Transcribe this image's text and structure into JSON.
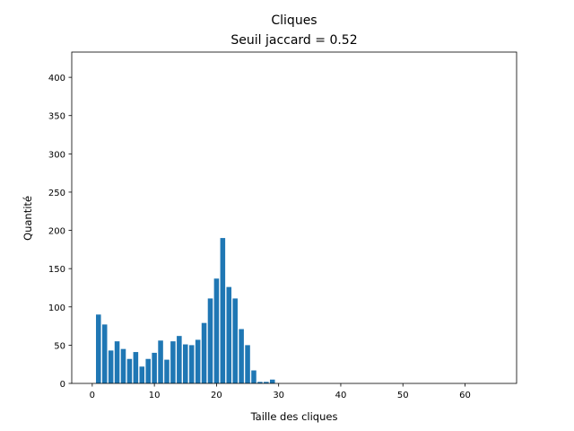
{
  "chart_data": {
    "type": "bar",
    "title": "Cliques",
    "subtitle": "Seuil jaccard = 0.52",
    "xlabel": "Taille des cliques",
    "ylabel": "Quantité",
    "x": [
      1,
      2,
      3,
      4,
      5,
      6,
      7,
      8,
      9,
      10,
      11,
      12,
      13,
      14,
      15,
      16,
      17,
      18,
      19,
      20,
      21,
      22,
      23,
      24,
      25,
      26,
      27,
      28,
      29
    ],
    "values": [
      90,
      77,
      43,
      55,
      45,
      32,
      41,
      22,
      32,
      40,
      56,
      31,
      55,
      62,
      51,
      50,
      57,
      79,
      111,
      137,
      190,
      126,
      111,
      71,
      50,
      17,
      2,
      2,
      5
    ],
    "xlim": [
      -3.3,
      68.3
    ],
    "ylim": [
      0,
      433
    ],
    "xticks": [
      0,
      10,
      20,
      30,
      40,
      50,
      60
    ],
    "yticks": [
      0,
      50,
      100,
      150,
      200,
      250,
      300,
      350,
      400
    ],
    "bar_color": "#1f77b4",
    "grid": false
  }
}
